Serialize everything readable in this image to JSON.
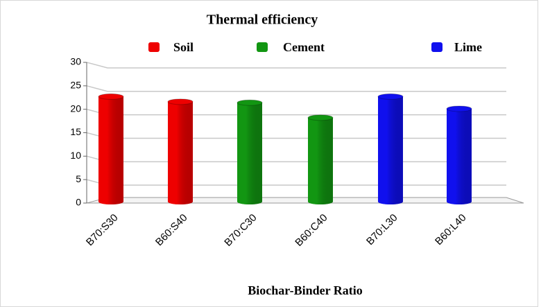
{
  "chart_data": {
    "type": "bar",
    "title": "Thermal efficiency",
    "x_label": "Biochar-Binder Ratio",
    "categories": [
      "B70:S30",
      "B60:S40",
      "B70:C30",
      "B60:C40",
      "B70:L30",
      "B60:L40"
    ],
    "series": [
      {
        "name": "Soil",
        "color": "#ee0000",
        "values": [
          22.7,
          21.6,
          null,
          null,
          null,
          null
        ]
      },
      {
        "name": "Cement",
        "color": "#129612",
        "values": [
          null,
          null,
          21.4,
          18.2,
          null,
          null
        ]
      },
      {
        "name": "Lime",
        "color": "#1010ee",
        "values": [
          null,
          null,
          null,
          null,
          22.7,
          20.1
        ]
      }
    ],
    "ylim": [
      0,
      30
    ],
    "yticks": [
      0,
      5,
      10,
      15,
      20,
      25,
      30
    ],
    "grid": true,
    "legend": "top"
  }
}
